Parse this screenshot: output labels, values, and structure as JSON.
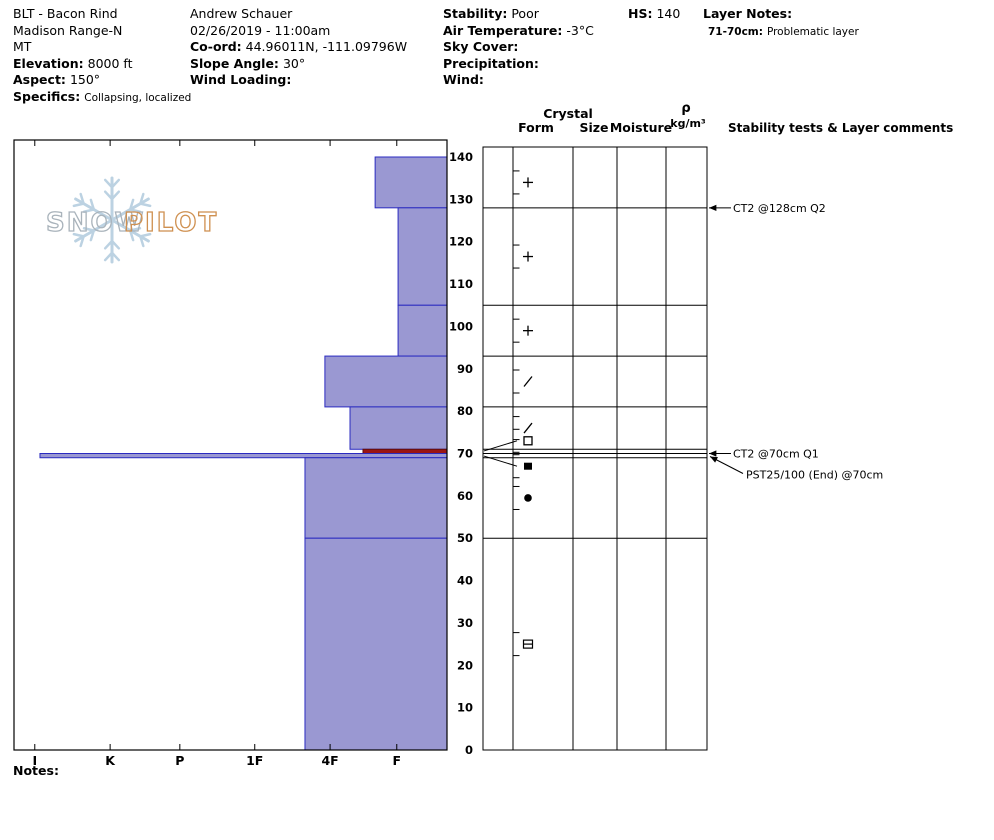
{
  "header": {
    "site": {
      "pit_name": "BLT - Bacon Rind",
      "range": "Madison Range-N",
      "state": "MT",
      "elevation_label": "Elevation:",
      "elevation_value": "8000 ft",
      "aspect_label": "Aspect:",
      "aspect_value": "150°",
      "specifics_label": "Specifics:",
      "specifics_value": "Collapsing, localized"
    },
    "observer": {
      "name": "Andrew Schauer",
      "datetime": "02/26/2019 - 11:00am",
      "coord_label": "Co-ord:",
      "coord_value": "44.96011N, -111.09796W",
      "slope_angle_label": "Slope Angle:",
      "slope_angle_value": "30°",
      "wind_loading_label": "Wind Loading:",
      "wind_loading_value": ""
    },
    "conditions": {
      "stability_label": "Stability:",
      "stability_value": "Poor",
      "air_temp_label": "Air Temperature:",
      "air_temp_value": "-3°C",
      "sky_cover_label": "Sky Cover:",
      "sky_cover_value": "",
      "precipitation_label": "Precipitation:",
      "precipitation_value": "",
      "wind_label": "Wind:",
      "wind_value": ""
    },
    "hs_label": "HS:",
    "hs_value": "140",
    "layer_notes": {
      "title": "Layer Notes:",
      "entries": [
        {
          "depth": "71-70cm:",
          "text": "Problematic layer"
        }
      ]
    }
  },
  "watermark": {
    "word1": "SNOW",
    "word2": "PILOT"
  },
  "notes": {
    "label": "Notes:"
  },
  "chart_data": {
    "type": "bar",
    "subtype": "snow-hardness-profile",
    "x_axis_note": "hand hardness, I (hardest) at left to F (softest) at right; bars extend left from right edge",
    "depth_axis": {
      "unit": "cm",
      "min": 0,
      "max": 144,
      "tick_labels": [
        0,
        10,
        20,
        30,
        40,
        50,
        60,
        70,
        80,
        90,
        100,
        110,
        120,
        130,
        140
      ]
    },
    "hardness_axis": {
      "labels": [
        "I",
        "K",
        "P",
        "1F",
        "4F",
        "F"
      ],
      "fractions": [
        0.048,
        0.222,
        0.383,
        0.556,
        0.73,
        0.884
      ]
    },
    "layers": [
      {
        "top_cm": 140,
        "bottom_cm": 128,
        "hand_hardness": "F+",
        "x_frac": 0.834,
        "grain_form": "PP",
        "glyph": "plus",
        "flagged": false
      },
      {
        "top_cm": 128,
        "bottom_cm": 105,
        "hand_hardness": "F",
        "x_frac": 0.887,
        "grain_form": "PP",
        "glyph": "plus",
        "flagged": false
      },
      {
        "top_cm": 105,
        "bottom_cm": 93,
        "hand_hardness": "F",
        "x_frac": 0.887,
        "grain_form": "PP",
        "glyph": "plus",
        "flagged": false
      },
      {
        "top_cm": 93,
        "bottom_cm": 81,
        "hand_hardness": "4F",
        "x_frac": 0.718,
        "grain_form": "DF",
        "glyph": "slash",
        "flagged": false
      },
      {
        "top_cm": 81,
        "bottom_cm": 71,
        "hand_hardness": "4F+",
        "x_frac": 0.776,
        "grain_form": "DF",
        "glyph": "slash",
        "flagged": false
      },
      {
        "top_cm": 71,
        "bottom_cm": 70,
        "hand_hardness": "F+",
        "x_frac": 0.806,
        "grain_form": "FC",
        "glyph": "square-open",
        "flagged": true,
        "symbol_depth_cm": 73
      },
      {
        "top_cm": 70,
        "bottom_cm": 69,
        "hand_hardness": "K+",
        "x_frac": 0.06,
        "grain_form": "IF",
        "glyph": "square-filled",
        "flagged": false,
        "symbol_depth_cm": 67
      },
      {
        "top_cm": 69,
        "bottom_cm": 50,
        "hand_hardness": "1F+",
        "x_frac": 0.672,
        "grain_form": "RG",
        "glyph": "circle-filled",
        "flagged": false
      },
      {
        "top_cm": 50,
        "bottom_cm": 0,
        "hand_hardness": "1F+",
        "x_frac": 0.672,
        "grain_form": "MFcr",
        "glyph": "square-minus",
        "flagged": false
      }
    ],
    "table": {
      "group_header": "Crystal",
      "columns": [
        "Form",
        "Size",
        "Moisture"
      ],
      "density_symbol": "ρ",
      "density_unit": "kg/m³",
      "comments_header": "Stability tests & Layer comments"
    },
    "annotations": [
      {
        "text": "CT2 @128cm  Q2",
        "depth_cm": 128,
        "style": "horizontal"
      },
      {
        "text": "CT2 @70cm  Q1",
        "depth_cm": 70,
        "style": "horizontal"
      },
      {
        "text": "PST25/100 (End) @70cm",
        "depth_cm": 70,
        "style": "diagonal"
      }
    ],
    "leader_lines": [
      {
        "from_depth_cm": 70.6,
        "to_depth_cm": 73
      },
      {
        "from_depth_cm": 69.4,
        "to_depth_cm": 67
      }
    ],
    "colors": {
      "bar_fill": "#9a98d2",
      "bar_stroke": "#2a2ac0",
      "flag_fill": "#991414",
      "flag_stroke": "#5e0c0c",
      "frame": "#000000",
      "watermark_flake": "#bcd2e2",
      "watermark_snow": "#a9b3bb",
      "watermark_pilot": "#cf9050"
    }
  }
}
